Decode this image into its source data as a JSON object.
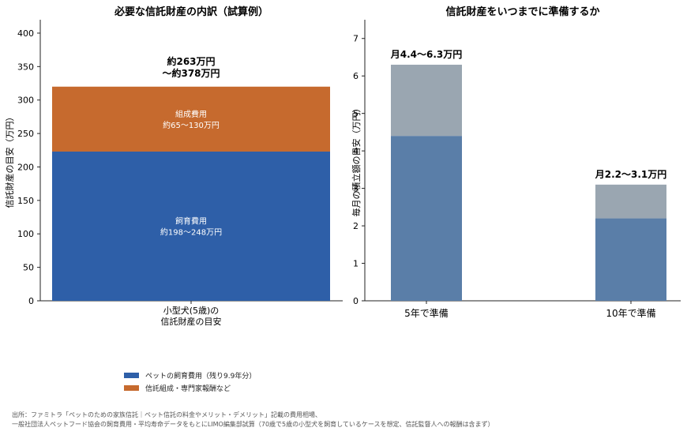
{
  "colors": {
    "rearing": "#2e5fa8",
    "trust": "#c66a2e",
    "monthly_low": "#5a7ea8",
    "monthly_high": "#9aa6b1",
    "axis": "#222222"
  },
  "chart_data": [
    {
      "type": "bar",
      "stacked": true,
      "title": "必要な信託財産の内訳（試算例）",
      "xlabel": "",
      "ylabel": "信託財産の目安（万円）",
      "ylim": [
        0,
        420
      ],
      "yticks": [
        0,
        50,
        100,
        150,
        200,
        250,
        300,
        350,
        400
      ],
      "categories": [
        "小型犬(5歳)の\n信託財産の目安"
      ],
      "category_lines": [
        "小型犬(5歳)の",
        "信託財産の目安"
      ],
      "series": [
        {
          "name": "ペットの飼育費用（残り9.9年分）",
          "values": [
            223
          ],
          "label_lines": [
            "飼育費用",
            "約198〜248万円"
          ]
        },
        {
          "name": "信託組成・専門家報酬など",
          "values": [
            97
          ],
          "label_lines": [
            "組成費用",
            "約65〜130万円"
          ]
        }
      ],
      "total_label_lines": [
        "約263万円",
        "〜約378万円"
      ],
      "legend_position": "bottom"
    },
    {
      "type": "bar",
      "stacked": true,
      "title": "信託財産をいつまでに準備するか",
      "xlabel": "",
      "ylabel": "毎月の積立額の目安（万円）",
      "ylim": [
        0,
        7.5
      ],
      "yticks": [
        0,
        1,
        2,
        3,
        4,
        5,
        6,
        7
      ],
      "categories": [
        "5年で準備",
        "10年で準備"
      ],
      "series": [
        {
          "values": [
            4.4,
            2.2
          ]
        },
        {
          "values": [
            1.9,
            0.9
          ]
        }
      ],
      "top_labels": [
        "月4.4〜6.3万円",
        "月2.2〜3.1万円"
      ]
    }
  ],
  "source": {
    "line1": "出所：ファミトラ「ペットのための家族信託｜ペット信託の料金やメリット・デメリット」記載の費用相場、",
    "line2": "一般社団法人ペットフード協会の飼育費用・平均寿命データをもとにLIMO編集部試算（70歳で5歳の小型犬を飼育しているケースを想定、信託監督人への報酬は含まず）"
  }
}
